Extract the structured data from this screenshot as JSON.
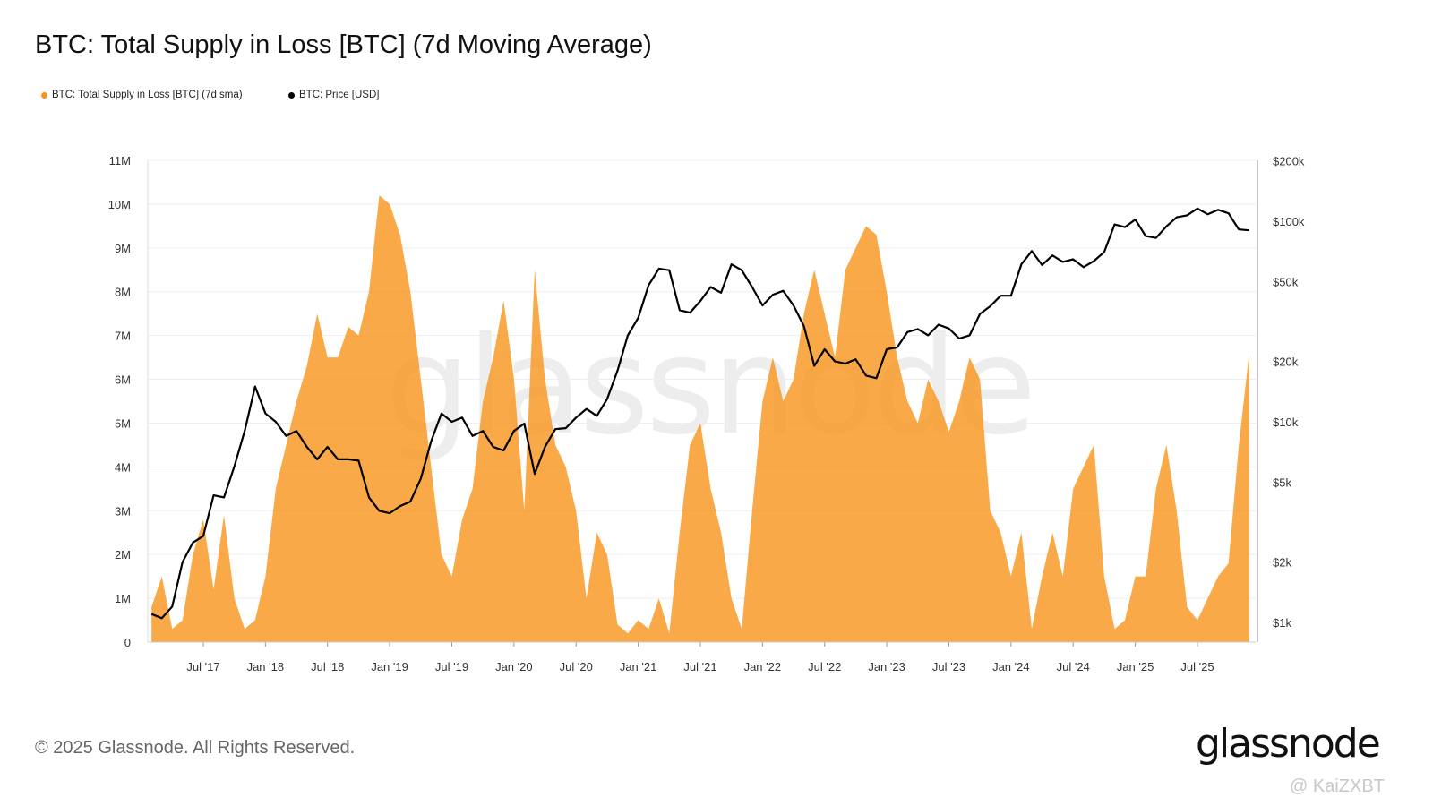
{
  "title": "BTC: Total Supply in Loss [BTC] (7d Moving Average)",
  "legend": [
    {
      "label": "BTC: Total Supply in Loss [BTC] (7d sma)",
      "color": "#f7931a"
    },
    {
      "label": "BTC: Price [USD]",
      "color": "#000000"
    }
  ],
  "footer": "© 2025 Glassnode. All Rights Reserved.",
  "logo": "glassnode",
  "watermark": "glassnode",
  "credit": "@ KaiZXBT",
  "chart_data": {
    "type": "area",
    "title": "BTC: Total Supply in Loss [BTC] (7d Moving Average)",
    "grid": true,
    "legend_position": "top-left",
    "x_ticks": [
      "Jul '17",
      "Jan '18",
      "Jul '18",
      "Jan '19",
      "Jul '19",
      "Jan '20",
      "Jul '20",
      "Jan '21",
      "Jul '21",
      "Jan '22",
      "Jul '22",
      "Jan '23",
      "Jul '23",
      "Jan '24",
      "Jul '24",
      "Jan '25",
      "Jul '25"
    ],
    "y_left": {
      "ticks": [
        "0",
        "1M",
        "2M",
        "3M",
        "4M",
        "5M",
        "6M",
        "7M",
        "8M",
        "9M",
        "10M",
        "11M"
      ],
      "lim": [
        0,
        11000000
      ],
      "scale": "linear"
    },
    "y_right": {
      "ticks": [
        {
          "label": "$1k",
          "value": 1000
        },
        {
          "label": "$2k",
          "value": 2000
        },
        {
          "label": "$5k",
          "value": 5000
        },
        {
          "label": "$10k",
          "value": 10000
        },
        {
          "label": "$20k",
          "value": 20000
        },
        {
          "label": "$50k",
          "value": 50000
        },
        {
          "label": "$100k",
          "value": 100000
        },
        {
          "label": "$200k",
          "value": 200000
        }
      ],
      "lim": [
        800,
        200000
      ],
      "scale": "log"
    },
    "dates": [
      "2017-02",
      "2017-03",
      "2017-04",
      "2017-05",
      "2017-06",
      "2017-07",
      "2017-08",
      "2017-09",
      "2017-10",
      "2017-11",
      "2017-12",
      "2018-01",
      "2018-02",
      "2018-03",
      "2018-04",
      "2018-05",
      "2018-06",
      "2018-07",
      "2018-08",
      "2018-09",
      "2018-10",
      "2018-11",
      "2018-12",
      "2019-01",
      "2019-02",
      "2019-03",
      "2019-04",
      "2019-05",
      "2019-06",
      "2019-07",
      "2019-08",
      "2019-09",
      "2019-10",
      "2019-11",
      "2019-12",
      "2020-01",
      "2020-02",
      "2020-03",
      "2020-04",
      "2020-05",
      "2020-06",
      "2020-07",
      "2020-08",
      "2020-09",
      "2020-10",
      "2020-11",
      "2020-12",
      "2021-01",
      "2021-02",
      "2021-03",
      "2021-04",
      "2021-05",
      "2021-06",
      "2021-07",
      "2021-08",
      "2021-09",
      "2021-10",
      "2021-11",
      "2021-12",
      "2022-01",
      "2022-02",
      "2022-03",
      "2022-04",
      "2022-05",
      "2022-06",
      "2022-07",
      "2022-08",
      "2022-09",
      "2022-10",
      "2022-11",
      "2022-12",
      "2023-01",
      "2023-02",
      "2023-03",
      "2023-04",
      "2023-05",
      "2023-06",
      "2023-07",
      "2023-08",
      "2023-09",
      "2023-10",
      "2023-11",
      "2023-12",
      "2024-01",
      "2024-02",
      "2024-03",
      "2024-04",
      "2024-05",
      "2024-06",
      "2024-07",
      "2024-08",
      "2024-09",
      "2024-10",
      "2024-11",
      "2024-12",
      "2025-01",
      "2025-02",
      "2025-03",
      "2025-04",
      "2025-05",
      "2025-06",
      "2025-07",
      "2025-08",
      "2025-09",
      "2025-10",
      "2025-11",
      "2025-12"
    ],
    "series": [
      {
        "name": "BTC: Total Supply in Loss [BTC] (7d sma)",
        "axis": "left",
        "color": "#f7931a",
        "values": [
          800000,
          1500000,
          300000,
          500000,
          2000000,
          2800000,
          1200000,
          2900000,
          1000000,
          300000,
          500000,
          1500000,
          3500000,
          4500000,
          5500000,
          6300000,
          7500000,
          6500000,
          6500000,
          7200000,
          7000000,
          8000000,
          10200000,
          10000000,
          9300000,
          8000000,
          6000000,
          4000000,
          2000000,
          1500000,
          2800000,
          3500000,
          5500000,
          6500000,
          7800000,
          6000000,
          3000000,
          8500000,
          6000000,
          4500000,
          4000000,
          3000000,
          1000000,
          2500000,
          2000000,
          400000,
          200000,
          500000,
          300000,
          1000000,
          200000,
          2500000,
          4500000,
          5000000,
          3500000,
          2500000,
          1000000,
          300000,
          3000000,
          5500000,
          6500000,
          5500000,
          6000000,
          7500000,
          8500000,
          7500000,
          6500000,
          8500000,
          9000000,
          9500000,
          9300000,
          8000000,
          6500000,
          5500000,
          5000000,
          6000000,
          5500000,
          4800000,
          5500000,
          6500000,
          6000000,
          3000000,
          2500000,
          1500000,
          2500000,
          300000,
          1500000,
          2500000,
          1500000,
          3500000,
          4000000,
          4500000,
          1500000,
          300000,
          500000,
          1500000,
          1500000,
          3500000,
          4500000,
          3000000,
          800000,
          500000,
          1000000,
          1500000,
          1800000,
          4500000,
          6600000
        ]
      },
      {
        "name": "BTC: Price [USD]",
        "axis": "right",
        "color": "#000000",
        "values": [
          1100,
          1050,
          1200,
          2000,
          2500,
          2700,
          4300,
          4200,
          6000,
          9000,
          15000,
          11000,
          10000,
          8500,
          9000,
          7500,
          6500,
          7500,
          6500,
          6500,
          6400,
          4200,
          3600,
          3500,
          3800,
          4000,
          5200,
          8000,
          11000,
          10000,
          10500,
          8500,
          9000,
          7500,
          7200,
          9000,
          9800,
          5500,
          7500,
          9200,
          9300,
          10500,
          11600,
          10700,
          13000,
          18000,
          27000,
          33000,
          48000,
          58000,
          57000,
          36000,
          35000,
          40000,
          47000,
          44000,
          61000,
          57000,
          47000,
          38000,
          43000,
          45000,
          38000,
          30000,
          19000,
          23000,
          20000,
          19500,
          20500,
          17000,
          16500,
          23000,
          23500,
          28000,
          29000,
          27000,
          30500,
          29200,
          26000,
          27000,
          34500,
          37700,
          42500,
          42500,
          61000,
          71000,
          60500,
          67500,
          62700,
          64600,
          59000,
          63300,
          70200,
          96400,
          93400,
          102000,
          84300,
          82500,
          94200,
          104600,
          107000,
          115700,
          108200,
          114000,
          109500,
          91000,
          90000
        ]
      }
    ]
  }
}
